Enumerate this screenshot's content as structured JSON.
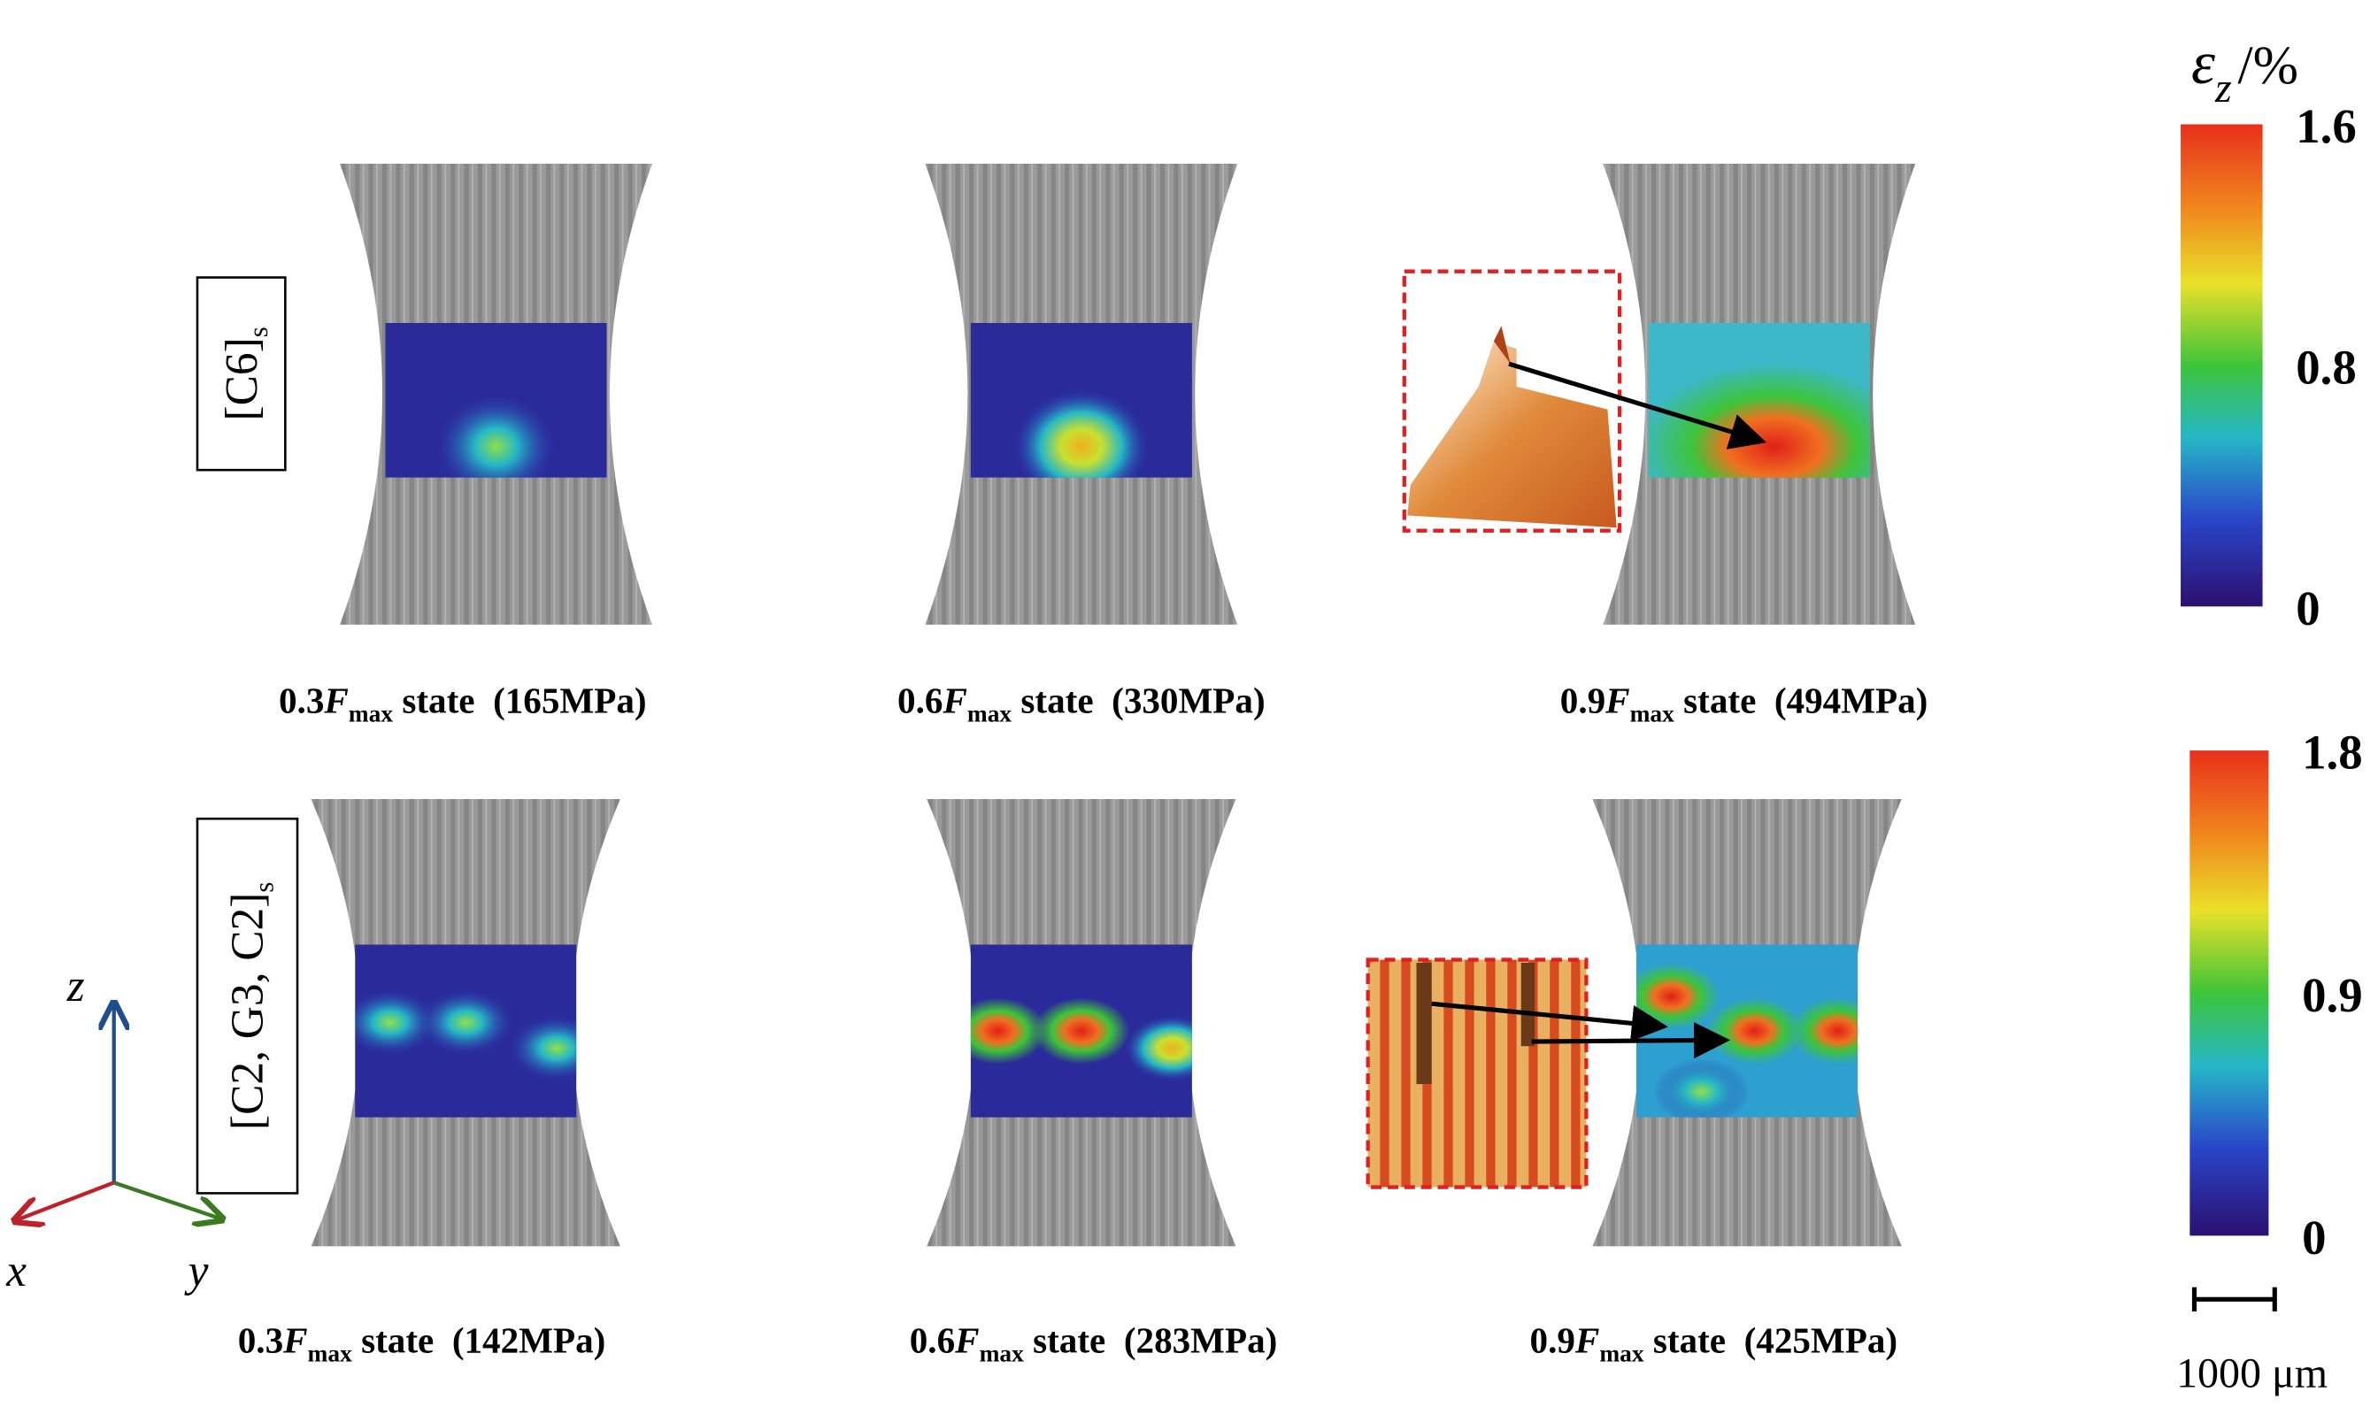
{
  "colorbar_title": {
    "symbol": "ε",
    "subscript": "z",
    "unit": "/%"
  },
  "colorbars": [
    {
      "ticks": [
        1.6,
        0.8,
        0
      ]
    },
    {
      "ticks": [
        1.8,
        0.9,
        0
      ]
    }
  ],
  "rows": [
    {
      "label": "[C6]",
      "label_subscript": "s",
      "panels": [
        {
          "factor": "0.3",
          "symbol": "F",
          "subscript": "max",
          "text": "state  (165MPa)"
        },
        {
          "factor": "0.6",
          "symbol": "F",
          "subscript": "max",
          "text": "state  (330MPa)"
        },
        {
          "factor": "0.9",
          "symbol": "F",
          "subscript": "max",
          "text": "state  (494MPa)"
        }
      ]
    },
    {
      "label": "[C2, G3, C2]",
      "label_subscript": "s",
      "panels": [
        {
          "factor": "0.3",
          "symbol": "F",
          "subscript": "max",
          "text": "state  (142MPa)"
        },
        {
          "factor": "0.6",
          "symbol": "F",
          "subscript": "max",
          "text": "state  (283MPa)"
        },
        {
          "factor": "0.9",
          "symbol": "F",
          "subscript": "max",
          "text": "state  (425MPa)"
        }
      ]
    }
  ],
  "axes": {
    "x": "x",
    "y": "y",
    "z": "z"
  },
  "scale_bar": "1000 μm"
}
